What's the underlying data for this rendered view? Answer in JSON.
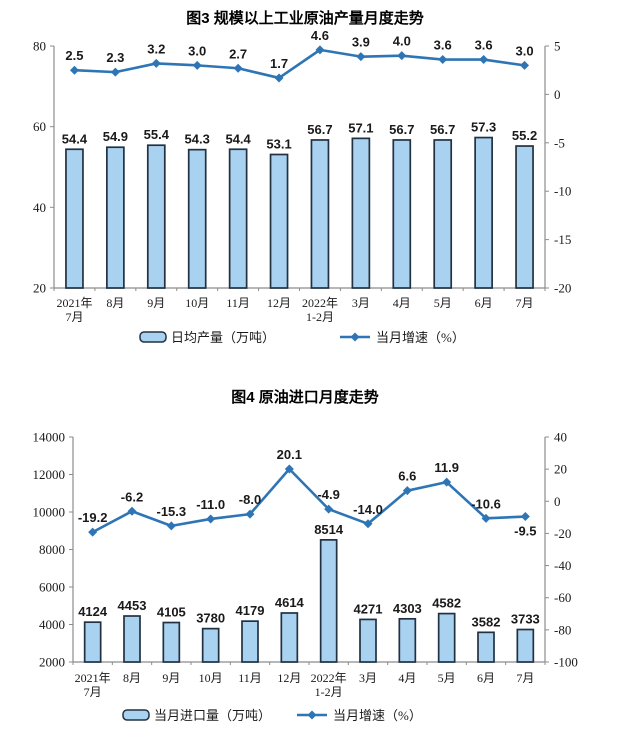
{
  "colors": {
    "bar_fill": "#A9D1F0",
    "bar_border": "#223142",
    "line": "#2E75B6",
    "axis": "#8C8C8C",
    "text": "#1A1A1A"
  },
  "chart_data": [
    {
      "id": "figure3",
      "type": "bar+line",
      "title": "图3 规模以上工业原油产量月度走势",
      "categories": [
        [
          "2021年",
          "7月"
        ],
        [
          "8月"
        ],
        [
          "9月"
        ],
        [
          "10月"
        ],
        [
          "11月"
        ],
        [
          "12月"
        ],
        [
          "2022年",
          "1-2月"
        ],
        [
          "3月"
        ],
        [
          "4月"
        ],
        [
          "5月"
        ],
        [
          "6月"
        ],
        [
          "7月"
        ]
      ],
      "series": [
        {
          "name": "日均产量（万吨）",
          "type": "bar",
          "axis": "left",
          "values": [
            54.4,
            54.9,
            55.4,
            54.3,
            54.4,
            53.1,
            56.7,
            57.1,
            56.7,
            56.7,
            57.3,
            55.2
          ],
          "labels": [
            "54.4",
            "54.9",
            "55.4",
            "54.3",
            "54.4",
            "53.1",
            "56.7",
            "57.1",
            "56.7",
            "56.7",
            "57.3",
            "55.2"
          ]
        },
        {
          "name": "当月增速（%）",
          "type": "line",
          "axis": "right",
          "values": [
            2.5,
            2.3,
            3.2,
            3.0,
            2.7,
            1.7,
            4.6,
            3.9,
            4.0,
            3.6,
            3.6,
            3.0
          ],
          "labels": [
            "2.5",
            "2.3",
            "3.2",
            "3.0",
            "2.7",
            "1.7",
            "4.6",
            "3.9",
            "4.0",
            "3.6",
            "3.6",
            "3.0"
          ],
          "labels_below": []
        }
      ],
      "left_axis": {
        "min": 20,
        "max": 80,
        "ticks": [
          "80",
          "60",
          "40",
          "20"
        ]
      },
      "right_axis": {
        "min": -20,
        "max": 5,
        "ticks": [
          "5",
          "0",
          "-5",
          "-10",
          "-15",
          "-20"
        ]
      },
      "legend": [
        "日均产量（万吨）",
        "当月增速（%）"
      ],
      "grid": "off",
      "legend_position": "bottom"
    },
    {
      "id": "figure4",
      "type": "bar+line",
      "title": "图4 原油进口月度走势",
      "categories": [
        [
          "2021年",
          "7月"
        ],
        [
          "8月"
        ],
        [
          "9月"
        ],
        [
          "10月"
        ],
        [
          "11月"
        ],
        [
          "12月"
        ],
        [
          "2022年",
          "1-2月"
        ],
        [
          "3月"
        ],
        [
          "4月"
        ],
        [
          "5月"
        ],
        [
          "6月"
        ],
        [
          "7月"
        ]
      ],
      "series": [
        {
          "name": "当月进口量（万吨）",
          "type": "bar",
          "axis": "left",
          "values": [
            4124,
            4453,
            4105,
            3780,
            4179,
            4614,
            8514,
            4271,
            4303,
            4582,
            3582,
            3733
          ],
          "labels": [
            "4124",
            "4453",
            "4105",
            "3780",
            "4179",
            "4614",
            "8514",
            "4271",
            "4303",
            "4582",
            "3582",
            "3733"
          ]
        },
        {
          "name": "当月增速（%）",
          "type": "line",
          "axis": "right",
          "values": [
            -19.2,
            -6.2,
            -15.3,
            -11.0,
            -8.0,
            20.1,
            -4.9,
            -14.0,
            6.6,
            11.9,
            -10.6,
            -9.5
          ],
          "labels": [
            "-19.2",
            "-6.2",
            "-15.3",
            "-11.0",
            "-8.0",
            "20.1",
            "-4.9",
            "-14.0",
            "6.6",
            "11.9",
            "-10.6",
            "-9.5"
          ],
          "labels_below": [
            11
          ]
        }
      ],
      "left_axis": {
        "min": 2000,
        "max": 14000,
        "ticks": [
          "14000",
          "12000",
          "10000",
          "8000",
          "6000",
          "4000",
          "2000"
        ]
      },
      "right_axis": {
        "min": -100,
        "max": 40,
        "ticks": [
          "40",
          "20",
          "0",
          "-20",
          "-40",
          "-60",
          "-80",
          "-100"
        ]
      },
      "legend": [
        "当月进口量（万吨）",
        "当月增速（%）"
      ],
      "grid": "off",
      "legend_position": "bottom"
    }
  ]
}
